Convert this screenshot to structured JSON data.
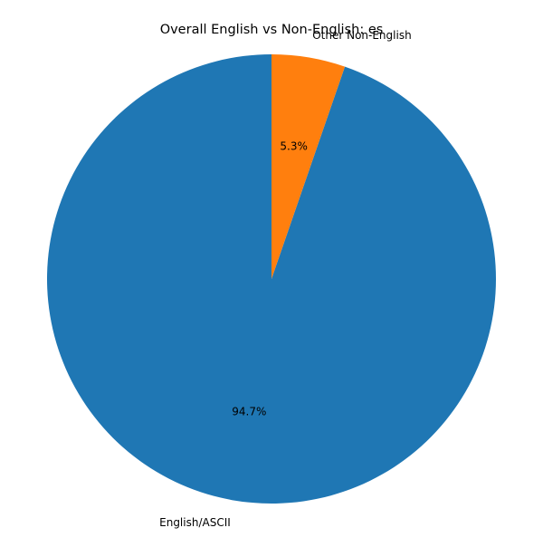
{
  "chart_data": {
    "type": "pie",
    "title": "Overall English vs Non-English: es",
    "slices": [
      {
        "label": "English/ASCII",
        "percent_label": "94.7%",
        "value": 94.7,
        "color": "#1f77b4"
      },
      {
        "label": "Other Non-English",
        "percent_label": "5.3%",
        "value": 5.3,
        "color": "#ff7f0e"
      }
    ],
    "start_angle_deg": 90,
    "direction": "counterclockwise",
    "legend": "none"
  }
}
